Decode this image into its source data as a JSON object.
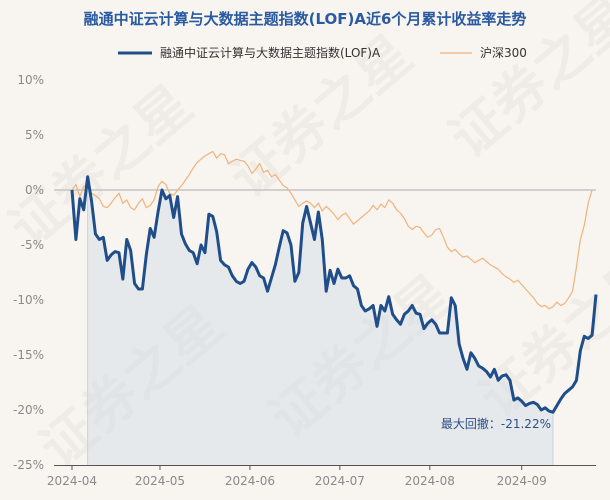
{
  "chart_data": {
    "type": "line",
    "title": "融通中证云计算与大数据主题指数(LOF)A近6个月累计收益率走势",
    "legend_position": "top",
    "grid": false,
    "yticks": [
      "10%",
      "5%",
      "0%",
      "-5%",
      "-10%",
      "-15%",
      "-20%",
      "-25%"
    ],
    "ytick_values": [
      10,
      5,
      0,
      -5,
      -10,
      -15,
      -20,
      -25
    ],
    "ylim": [
      -25,
      10
    ],
    "xticks": [
      "2024-04",
      "2024-05",
      "2024-06",
      "2024-07",
      "2024-08",
      "2024-09"
    ],
    "xlim": [
      0,
      134
    ],
    "annotation": {
      "text": "最大回撤：-21.22%"
    },
    "series": [
      {
        "name": "融通中证云计算与大数据主题指数(LOF)A",
        "color": "#1f4e8a",
        "values": [
          0,
          -4.5,
          -0.8,
          -1.8,
          1.2,
          -1,
          -4,
          -4.5,
          -4.3,
          -6.4,
          -5.9,
          -5.6,
          -5.7,
          -8.1,
          -4.5,
          -5.5,
          -8.5,
          -9,
          -9,
          -5.9,
          -3.5,
          -4.3,
          -2,
          0,
          -0.8,
          -0.5,
          -2.5,
          -0.6,
          -4,
          -4.9,
          -5.5,
          -5.7,
          -6.7,
          -5,
          -5.7,
          -2.2,
          -2.4,
          -3.8,
          -6.4,
          -6.8,
          -7,
          -7.8,
          -8.3,
          -8.5,
          -8.3,
          -7.2,
          -6.6,
          -7,
          -7.8,
          -8,
          -9.2,
          -8,
          -6.8,
          -5.2,
          -3.7,
          -3.9,
          -5,
          -8.3,
          -7.5,
          -3,
          -1.5,
          -3,
          -4.5,
          -2,
          -4.5,
          -9.2,
          -7.3,
          -8.5,
          -7.2,
          -8,
          -8,
          -7.8,
          -8.7,
          -9,
          -10.5,
          -11,
          -10.8,
          -10.5,
          -12.4,
          -10.5,
          -11,
          -9.7,
          -11.3,
          -11.8,
          -12.2,
          -11.3,
          -11,
          -10.5,
          -11.2,
          -11.3,
          -12.6,
          -12.1,
          -11.8,
          -12.2,
          -13,
          -13,
          -13,
          -9.8,
          -10.5,
          -14,
          -15.3,
          -16.3,
          -14.8,
          -15.3,
          -16,
          -16.2,
          -16.5,
          -17,
          -16.3,
          -17.3,
          -16.9,
          -16.8,
          -17.3,
          -19.1,
          -18.9,
          -19.2,
          -19.6,
          -19.4,
          -19.3,
          -19.5,
          -20,
          -19.8,
          -20.1,
          -20.2,
          -19.6,
          -19,
          -18.5,
          -18.2,
          -17.9,
          -17.3,
          -14.6,
          -13.3,
          -13.5,
          -13.2,
          -9.5
        ]
      },
      {
        "name": "沪深300",
        "color": "#f2b27a",
        "values": [
          0,
          0.5,
          -0.6,
          0.3,
          0.6,
          -0.3,
          -0.5,
          -0.8,
          -1.5,
          -1.6,
          -1.2,
          -0.7,
          -0.3,
          -1.2,
          -0.9,
          -1.6,
          -1.8,
          -1.2,
          -0.8,
          -1.6,
          -1.4,
          -0.9,
          0.3,
          0.8,
          0.5,
          -0.3,
          -0.5,
          0,
          0.4,
          0.9,
          1.4,
          2,
          2.5,
          2.8,
          3.1,
          3.3,
          3.5,
          2.9,
          3.3,
          3.2,
          2.4,
          2.6,
          2.8,
          2.7,
          2.6,
          2.2,
          1.5,
          1.9,
          2.4,
          1.6,
          1.8,
          1.2,
          1.4,
          0.9,
          0.4,
          0.2,
          -0.3,
          -0.9,
          -1.5,
          -1.2,
          -1,
          -1.2,
          -1.6,
          -1.2,
          -1.9,
          -1.5,
          -1.8,
          -2.2,
          -2.7,
          -2.3,
          -2.1,
          -2.6,
          -3.1,
          -2.8,
          -2.5,
          -2.2,
          -1.9,
          -1.4,
          -1.8,
          -1.3,
          -1.6,
          -0.9,
          -1.2,
          -1.8,
          -2.1,
          -2.6,
          -3.3,
          -3.6,
          -3.3,
          -3.4,
          -3.9,
          -4.3,
          -4.1,
          -3.6,
          -3.5,
          -4.3,
          -5.2,
          -5.6,
          -5.4,
          -5.8,
          -6.1,
          -6,
          -6.3,
          -6.6,
          -6.4,
          -6.2,
          -6.5,
          -6.8,
          -7,
          -7.2,
          -7.6,
          -7.9,
          -8.1,
          -8.4,
          -8.2,
          -8.6,
          -9,
          -9.4,
          -9.8,
          -10.3,
          -10.6,
          -10.5,
          -10.8,
          -10.6,
          -10.2,
          -10.5,
          -10.3,
          -9.8,
          -9.2,
          -7,
          -4.5,
          -3.2,
          -1.2,
          0
        ]
      }
    ]
  }
}
